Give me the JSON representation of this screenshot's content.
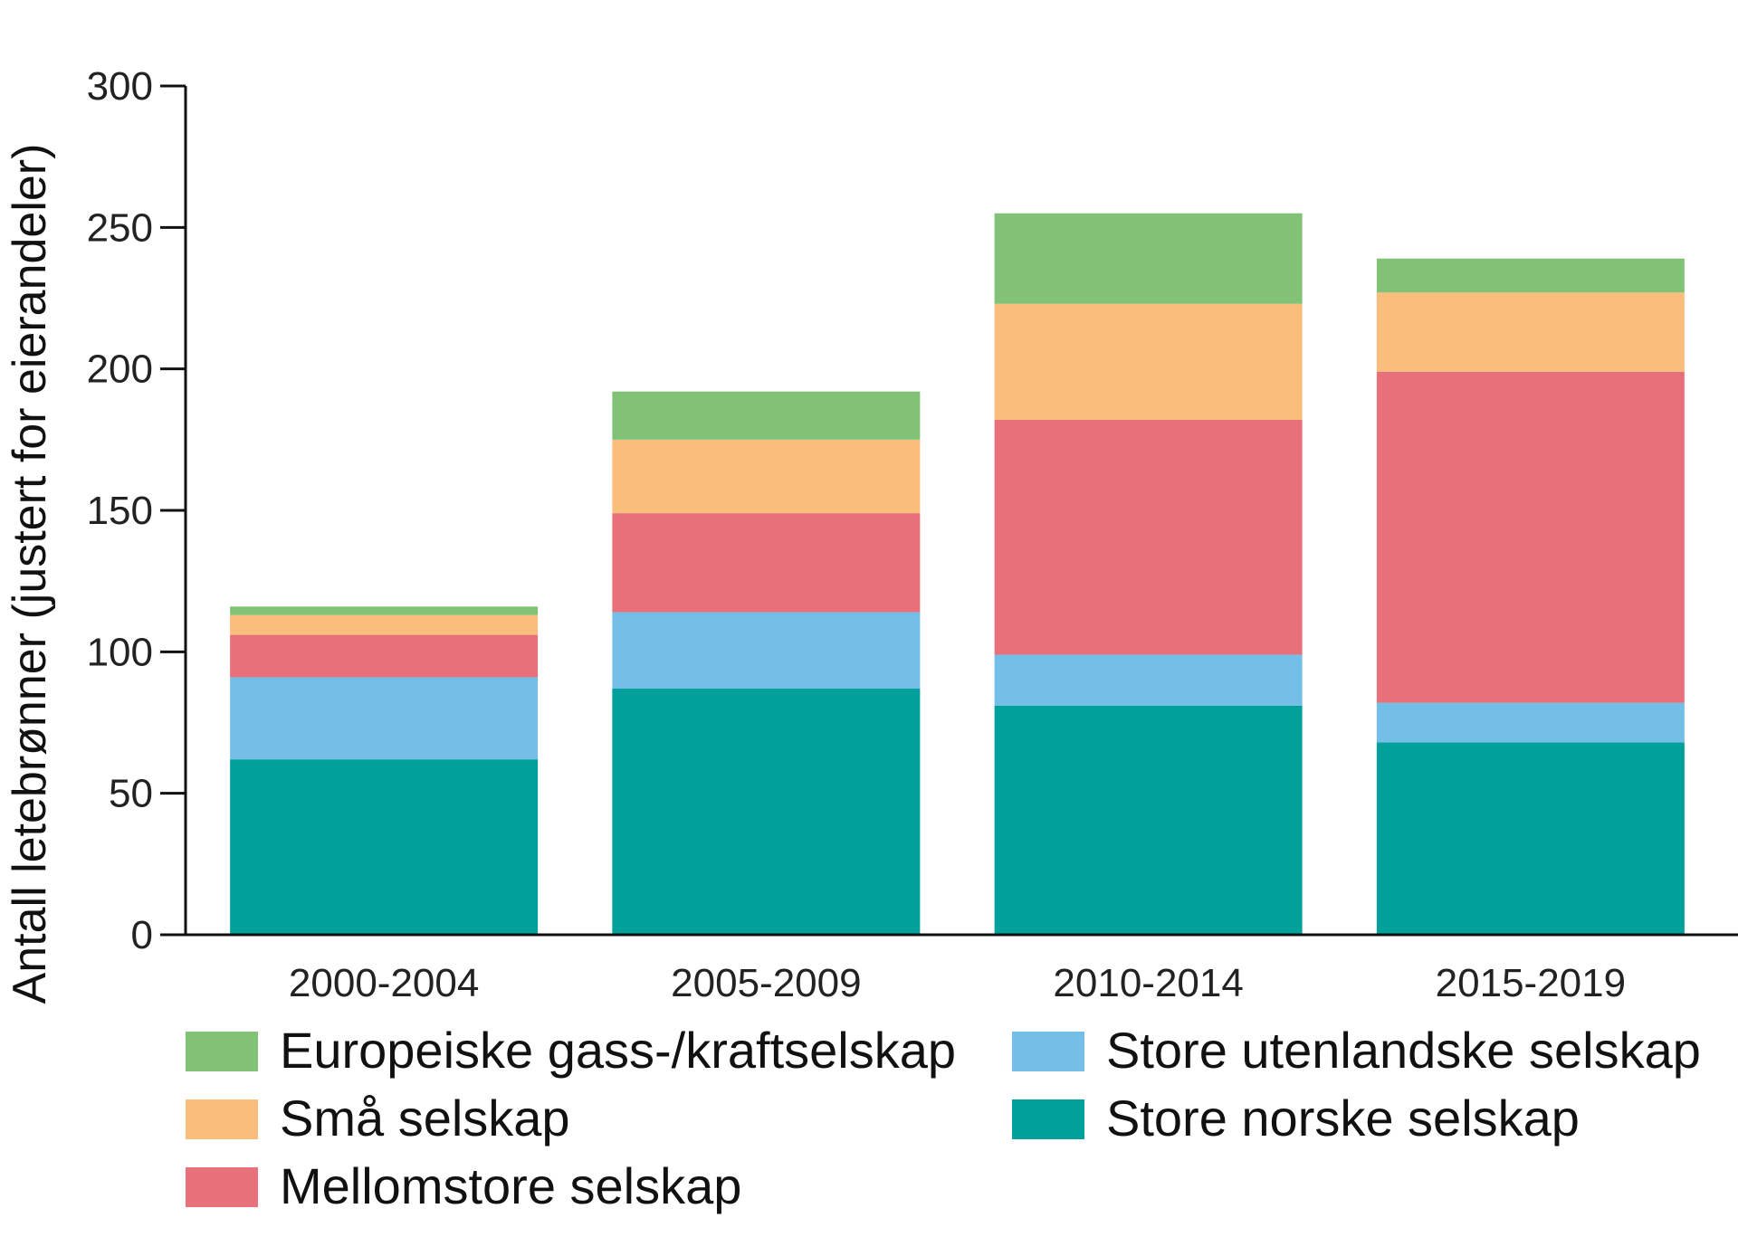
{
  "chart_data": {
    "type": "bar",
    "stacked": true,
    "title": "",
    "xlabel": "",
    "ylabel": "Antall letebrønner (justert for eierandeler)",
    "ylim": [
      0,
      300
    ],
    "yticks": [
      0,
      50,
      100,
      150,
      200,
      250,
      300
    ],
    "grid": false,
    "legend_position": "bottom",
    "categories": [
      "2000-2004",
      "2005-2009",
      "2010-2014",
      "2015-2019"
    ],
    "series": [
      {
        "name": "Store norske selskap",
        "color": "#00A19A",
        "values": [
          62,
          87,
          81,
          68
        ]
      },
      {
        "name": "Store utenlandske selskap",
        "color": "#74BFE7",
        "values": [
          29,
          27,
          18,
          14
        ]
      },
      {
        "name": "Mellomstore selskap",
        "color": "#E8707A",
        "values": [
          15,
          35,
          83,
          117
        ]
      },
      {
        "name": "Små selskap",
        "color": "#FBBD7C",
        "values": [
          7,
          26,
          41,
          28
        ]
      },
      {
        "name": "Europeiske gass-/kraftselskap",
        "color": "#82C277",
        "values": [
          3,
          17,
          32,
          12
        ]
      }
    ],
    "legend_order": [
      "Europeiske gass-/kraftselskap",
      "Små selskap",
      "Mellomstore selskap",
      "Store utenlandske selskap",
      "Store norske selskap"
    ]
  }
}
